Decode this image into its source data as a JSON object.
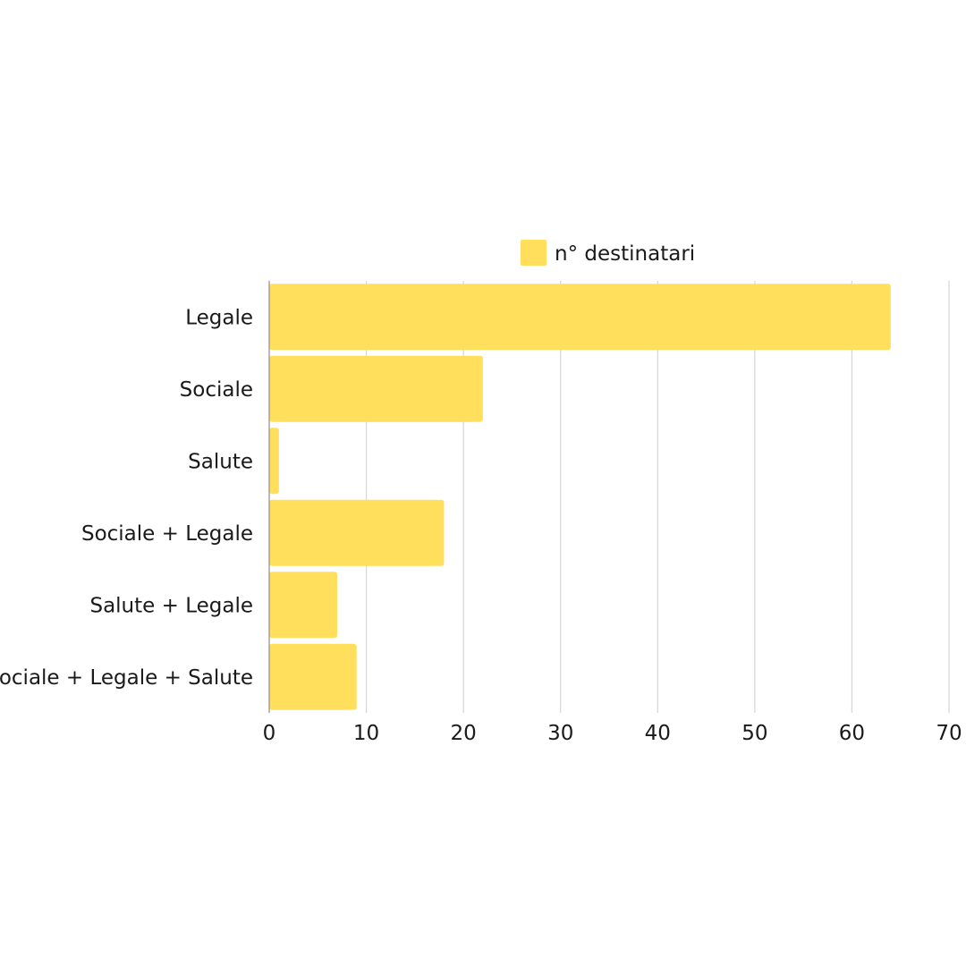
{
  "chart_data": {
    "type": "bar",
    "orientation": "horizontal",
    "categories": [
      "Legale",
      "Sociale",
      "Salute",
      "Sociale + Legale",
      "Salute + Legale",
      "Sociale + Legale + Salute"
    ],
    "series": [
      {
        "name": "n° destinatari",
        "values": [
          64,
          22,
          1,
          18,
          7,
          9
        ],
        "color": "#FFDF5C"
      }
    ],
    "xlim": [
      0,
      70
    ],
    "xticks": [
      0,
      10,
      20,
      30,
      40,
      50,
      60,
      70
    ],
    "title": "",
    "xlabel": "",
    "ylabel": "",
    "grid": "vertical",
    "legend_position": "top-center"
  }
}
